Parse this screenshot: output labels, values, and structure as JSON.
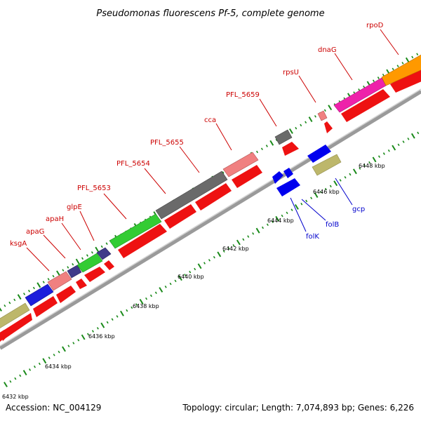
{
  "title": "Pseudomonas fluorescens Pf-5, complete genome",
  "footer": {
    "accession": "Accession: NC_004129",
    "summary": "Topology: circular; Length: 7,074,893 bp; Genes: 6,226"
  },
  "scale": {
    "tick_labels": [
      "6432 kbp",
      "6434 kbp",
      "6436 kbp",
      "6438 kbp",
      "6440 kbp",
      "6442 kbp",
      "6444 kbp",
      "6446 kbp",
      "6448 kbp"
    ]
  },
  "colors": {
    "backbone": "#9a9a9a",
    "cds_fwd": "#ee1111",
    "tick_outer": "#1a8a1a",
    "tick_inner": "#1a8a1a",
    "label_red": "#cc0000",
    "label_blue": "#0000cc"
  },
  "labels": [
    {
      "name": "ksgA",
      "color": "red"
    },
    {
      "name": "apaG",
      "color": "red"
    },
    {
      "name": "apaH",
      "color": "red"
    },
    {
      "name": "glpE",
      "color": "red"
    },
    {
      "name": "PFL_5653",
      "color": "red"
    },
    {
      "name": "PFL_5654",
      "color": "red"
    },
    {
      "name": "PFL_5655",
      "color": "red"
    },
    {
      "name": "cca",
      "color": "red"
    },
    {
      "name": "PFL_5659",
      "color": "red"
    },
    {
      "name": "rpsU",
      "color": "red"
    },
    {
      "name": "dnaG",
      "color": "red"
    },
    {
      "name": "rpoD",
      "color": "red"
    },
    {
      "name": "folK",
      "color": "blue"
    },
    {
      "name": "folB",
      "color": "blue"
    },
    {
      "name": "gcp",
      "color": "blue"
    }
  ]
}
